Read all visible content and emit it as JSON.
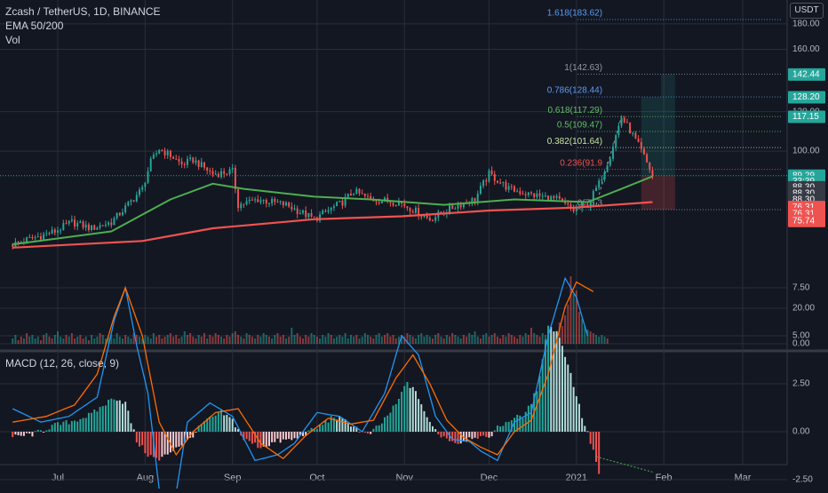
{
  "header": {
    "symbol_line": "Zcash / TetherUS, 1D, BINANCE",
    "indicator_ema": "EMA 50/200",
    "indicator_vol": "Vol",
    "currency": "USDT",
    "macd_label": "MACD (12, 26, close, 9)"
  },
  "colors": {
    "background": "#131722",
    "grid": "#2a2e39",
    "up": "#26a69a",
    "down": "#ef5350",
    "ema50": "#4caf50",
    "ema200": "#f05350",
    "macd": "#2196f3",
    "signal": "#ff6d00",
    "fib_blue": "#5b9cf6",
    "fib_green": "#66bb6a",
    "fib_yellow": "#c8e6a0",
    "fib_red": "#ef5350",
    "fib_gray": "#9598a1"
  },
  "fib_levels": [
    {
      "label": "1.618(183.62)",
      "price": 183.62,
      "color": "#5b9cf6"
    },
    {
      "label": "1(142.63)",
      "price": 142.63,
      "color": "#9598a1"
    },
    {
      "label": "0.786(128.44)",
      "price": 128.44,
      "color": "#5b9cf6"
    },
    {
      "label": "0.618(117.29)",
      "price": 117.29,
      "color": "#66bb6a"
    },
    {
      "label": "0.5(109.47)",
      "price": 109.47,
      "color": "#66bb6a"
    },
    {
      "label": "0.382(101.64)",
      "price": 101.64,
      "color": "#c8e6a0"
    },
    {
      "label": "0.236(91.9",
      "price": 91.9,
      "color": "#ef5350"
    },
    {
      "label": "0(76.3",
      "price": 76.3,
      "color": "#9598a1"
    }
  ],
  "price_badges": [
    {
      "text": "142.44",
      "price": 142.44,
      "bg": "#26a69a"
    },
    {
      "text": "128.20",
      "price": 128.2,
      "bg": "#26a69a"
    },
    {
      "text": "117.15",
      "price": 117.15,
      "bg": "#26a69a"
    },
    {
      "text": "89.29",
      "price": 89.29,
      "bg": "#26a69a"
    },
    {
      "text": "33:39",
      "price": 86.8,
      "bg": "#26a69a"
    },
    {
      "text": "88.30",
      "price": 84.6,
      "bg": "#363a45"
    },
    {
      "text": "88.30",
      "price": 82.2,
      "bg": "#363a45"
    },
    {
      "text": "88.30",
      "price": 79.8,
      "bg": "#363a45"
    },
    {
      "text": "76.31",
      "price": 77.2,
      "bg": "#ef5350"
    },
    {
      "text": "76.31",
      "price": 74.8,
      "bg": "#ef5350"
    },
    {
      "text": "75.74",
      "price": 72.4,
      "bg": "#ef5350"
    }
  ],
  "chart_data": [
    {
      "type": "candlestick",
      "title": "Zcash / TetherUS, 1D, BINANCE",
      "y_scale": "log",
      "y_ticks": [
        180,
        160,
        120,
        100
      ],
      "y_tick_labels": [
        "180.00",
        "160.00",
        "120.00",
        "100.00"
      ],
      "x_tick_labels": [
        "Jul",
        "Aug",
        "Sep",
        "Oct",
        "Nov",
        "Dec",
        "2021",
        "Feb",
        "Mar"
      ],
      "x_tick_dates": [
        "2020-07-01",
        "2020-08-01",
        "2020-09-01",
        "2020-10-01",
        "2020-11-01",
        "2020-12-01",
        "2021-01-01",
        "2021-02-01",
        "2021-03-01"
      ],
      "close_path": [
        [
          "2020-06-15",
          65
        ],
        [
          "2020-06-30",
          69
        ],
        [
          "2020-07-06",
          72
        ],
        [
          "2020-07-13",
          70
        ],
        [
          "2020-07-20",
          72
        ],
        [
          "2020-07-25",
          77
        ],
        [
          "2020-07-31",
          84
        ],
        [
          "2020-08-03",
          95
        ],
        [
          "2020-08-06",
          101
        ],
        [
          "2020-08-10",
          98
        ],
        [
          "2020-08-14",
          94
        ],
        [
          "2020-08-18",
          96
        ],
        [
          "2020-08-25",
          90
        ],
        [
          "2020-09-01",
          91
        ],
        [
          "2020-09-03",
          78
        ],
        [
          "2020-09-10",
          80
        ],
        [
          "2020-09-20",
          78
        ],
        [
          "2020-09-30",
          73
        ],
        [
          "2020-10-10",
          79
        ],
        [
          "2020-10-14",
          83
        ],
        [
          "2020-10-20",
          80
        ],
        [
          "2020-10-30",
          79
        ],
        [
          "2020-11-10",
          73
        ],
        [
          "2020-11-20",
          78
        ],
        [
          "2020-11-26",
          80
        ],
        [
          "2020-12-01",
          90
        ],
        [
          "2020-12-08",
          84
        ],
        [
          "2020-12-15",
          82
        ],
        [
          "2020-12-25",
          80
        ],
        [
          "2020-12-31",
          76
        ],
        [
          "2021-01-05",
          78
        ],
        [
          "2021-01-09",
          86
        ],
        [
          "2021-01-13",
          98
        ],
        [
          "2021-01-17",
          117
        ],
        [
          "2021-01-20",
          110
        ],
        [
          "2021-01-24",
          100
        ],
        [
          "2021-01-27",
          92
        ],
        [
          "2021-01-28",
          89.29
        ]
      ],
      "ema50_path": [
        [
          "2020-06-15",
          65
        ],
        [
          "2020-07-20",
          69
        ],
        [
          "2020-08-10",
          80
        ],
        [
          "2020-08-25",
          86
        ],
        [
          "2020-09-05",
          84
        ],
        [
          "2020-09-30",
          81
        ],
        [
          "2020-10-20",
          80
        ],
        [
          "2020-11-15",
          78
        ],
        [
          "2020-12-10",
          80
        ],
        [
          "2021-01-05",
          79
        ],
        [
          "2021-01-17",
          84
        ],
        [
          "2021-01-28",
          89
        ]
      ],
      "ema200_path": [
        [
          "2020-06-15",
          64
        ],
        [
          "2020-07-31",
          66
        ],
        [
          "2020-08-25",
          70
        ],
        [
          "2020-09-30",
          73
        ],
        [
          "2020-10-31",
          74
        ],
        [
          "2020-12-01",
          76
        ],
        [
          "2020-12-31",
          77
        ],
        [
          "2021-01-28",
          79
        ]
      ]
    },
    {
      "type": "bar",
      "title": "Vol",
      "y_ticks": [
        20,
        0
      ],
      "y_tick_labels": [
        "20.00",
        "0.00"
      ],
      "series": [
        {
          "values": [
            3,
            5,
            2,
            4,
            3,
            6,
            4,
            5,
            3,
            4,
            2,
            5,
            6,
            4,
            3,
            5,
            7,
            4,
            3,
            5,
            4,
            6,
            3,
            4,
            5,
            3,
            4,
            2,
            5,
            3,
            4,
            6,
            5,
            3,
            4,
            5,
            3,
            6,
            4,
            3,
            5,
            4,
            3,
            6,
            5,
            4,
            3,
            5,
            4,
            3,
            6,
            4,
            5,
            3,
            4,
            5,
            6,
            4,
            5,
            3,
            4,
            7,
            5,
            6,
            4,
            3,
            5,
            4,
            6,
            3,
            5,
            4,
            6,
            5,
            4,
            3,
            5,
            4,
            6,
            7,
            5,
            4,
            3,
            6,
            5,
            4,
            3,
            5,
            4,
            6,
            5,
            4,
            3,
            5,
            6,
            4,
            5,
            3,
            4,
            9,
            5,
            6,
            4,
            3,
            5,
            4,
            6,
            5,
            4,
            3,
            5,
            4,
            6,
            5,
            3,
            4,
            5,
            4,
            6,
            3,
            5,
            4,
            5,
            3,
            4,
            6,
            5,
            4,
            3,
            5,
            6,
            4,
            5,
            6,
            4,
            5,
            3,
            4,
            5,
            4,
            6,
            5,
            4,
            3,
            5,
            6,
            4,
            5,
            4,
            3,
            5,
            6,
            4,
            3,
            5,
            4,
            6,
            5,
            4,
            3,
            5,
            4,
            6,
            5,
            7,
            4,
            3,
            5,
            6,
            4,
            5,
            6,
            4,
            3,
            5,
            4,
            6,
            5,
            4,
            3,
            5,
            4,
            6,
            5,
            9,
            6,
            5,
            4,
            6,
            5,
            7,
            4,
            6,
            5,
            12,
            10,
            16,
            22,
            38,
            28,
            30,
            18,
            14,
            10,
            8,
            7,
            6,
            5,
            4,
            5,
            4,
            3
          ]
        }
      ]
    },
    {
      "type": "bar",
      "title": "MACD (12, 26, close, 9)",
      "y_ticks": [
        7.5,
        5,
        2.5,
        0,
        -2.5
      ],
      "y_tick_labels": [
        "7.50",
        "5.00",
        "2.50",
        "0.00",
        "-2.50"
      ],
      "series": [
        {
          "values_keypoints": [
            [
              0,
              -0.3
            ],
            [
              8,
              -0.1
            ],
            [
              14,
              0.3
            ],
            [
              20,
              0.5
            ],
            [
              28,
              0.9
            ],
            [
              36,
              1.8
            ],
            [
              40,
              1.5
            ],
            [
              44,
              -0.5
            ],
            [
              48,
              -1.2
            ],
            [
              52,
              -1.5
            ],
            [
              58,
              -0.8
            ],
            [
              62,
              -0.5
            ],
            [
              68,
              0.5
            ],
            [
              74,
              1.0
            ],
            [
              78,
              0.6
            ],
            [
              82,
              -0.4
            ],
            [
              88,
              -0.8
            ],
            [
              94,
              -0.5
            ],
            [
              100,
              -0.4
            ],
            [
              108,
              0.2
            ],
            [
              114,
              0.8
            ],
            [
              120,
              0.4
            ],
            [
              126,
              -0.2
            ],
            [
              130,
              0.3
            ],
            [
              136,
              1.4
            ],
            [
              140,
              2.6
            ],
            [
              144,
              1.8
            ],
            [
              148,
              0.4
            ],
            [
              152,
              -0.2
            ],
            [
              158,
              -0.6
            ],
            [
              164,
              -0.2
            ],
            [
              168,
              -0.4
            ],
            [
              172,
              0.2
            ],
            [
              176,
              0.6
            ],
            [
              182,
              0.9
            ],
            [
              186,
              2.2
            ],
            [
              190,
              5.6
            ],
            [
              194,
              5.0
            ],
            [
              198,
              3.0
            ],
            [
              202,
              0.8
            ],
            [
              206,
              -1.0
            ],
            [
              208,
              -2.2
            ]
          ]
        },
        {
          "values_keypoints": [
            [
              0,
              1.2
            ],
            [
              10,
              0.5
            ],
            [
              20,
              0.8
            ],
            [
              30,
              1.8
            ],
            [
              36,
              5.8
            ],
            [
              40,
              7.5
            ],
            [
              44,
              4.5
            ],
            [
              48,
              2.0
            ],
            [
              52,
              -3.0
            ],
            [
              58,
              -3.2
            ],
            [
              62,
              0.5
            ],
            [
              70,
              1.5
            ],
            [
              78,
              0.8
            ],
            [
              86,
              -1.5
            ],
            [
              94,
              -1.2
            ],
            [
              100,
              -0.6
            ],
            [
              108,
              1.0
            ],
            [
              116,
              0.8
            ],
            [
              124,
              0.0
            ],
            [
              132,
              2.0
            ],
            [
              138,
              5.0
            ],
            [
              144,
              4.0
            ],
            [
              150,
              0.8
            ],
            [
              156,
              -0.4
            ],
            [
              162,
              -0.5
            ],
            [
              166,
              -1.0
            ],
            [
              172,
              -1.5
            ],
            [
              178,
              0.5
            ],
            [
              184,
              1.0
            ],
            [
              190,
              5.0
            ],
            [
              196,
              8.0
            ],
            [
              200,
              7.0
            ],
            [
              204,
              5.0
            ]
          ]
        },
        {
          "values_keypoints": [
            [
              0,
              0.5
            ],
            [
              12,
              0.8
            ],
            [
              22,
              1.4
            ],
            [
              30,
              3.0
            ],
            [
              36,
              6.0
            ],
            [
              40,
              7.5
            ],
            [
              46,
              5.0
            ],
            [
              52,
              0.5
            ],
            [
              58,
              -1.2
            ],
            [
              64,
              0.0
            ],
            [
              72,
              1.0
            ],
            [
              80,
              1.2
            ],
            [
              88,
              -0.6
            ],
            [
              96,
              -1.4
            ],
            [
              104,
              -0.2
            ],
            [
              112,
              0.7
            ],
            [
              120,
              0.4
            ],
            [
              128,
              0.6
            ],
            [
              136,
              2.8
            ],
            [
              142,
              4.0
            ],
            [
              148,
              2.5
            ],
            [
              154,
              0.6
            ],
            [
              160,
              -0.3
            ],
            [
              166,
              -0.8
            ],
            [
              172,
              -1.2
            ],
            [
              178,
              0.0
            ],
            [
              184,
              0.6
            ],
            [
              190,
              3.0
            ],
            [
              196,
              6.5
            ],
            [
              200,
              7.8
            ],
            [
              206,
              7.3
            ]
          ]
        }
      ]
    }
  ]
}
